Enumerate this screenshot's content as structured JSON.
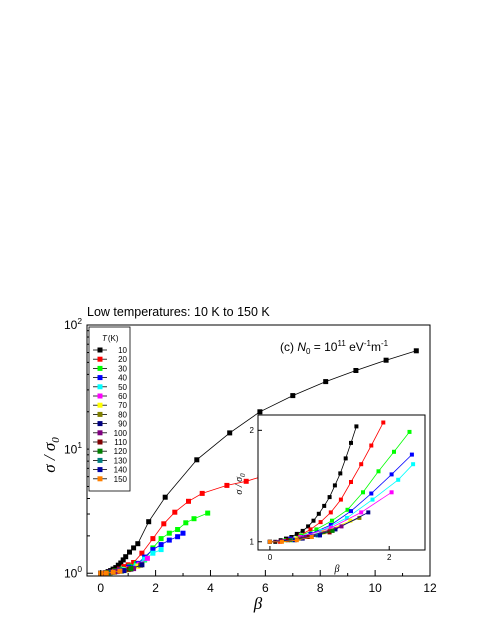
{
  "heading": "Low temperatures: 10 K to 150 K",
  "chart_data": [
    {
      "type": "line",
      "xlabel": "β",
      "ylabel": "σ / σ0",
      "xlim": [
        -0.5,
        12
      ],
      "ylim": [
        0.95,
        100
      ],
      "yscale": "log",
      "x_ticks": [
        0,
        2,
        4,
        6,
        8,
        10,
        12
      ],
      "y_ticks": [
        1,
        10,
        100
      ],
      "y_tick_labels": [
        {
          "base": "10",
          "exp": "0"
        },
        {
          "base": "10",
          "exp": "1"
        },
        {
          "base": "10",
          "exp": "2"
        }
      ],
      "annotation": {
        "prefix": "(c) ",
        "sym": "N",
        "sub": "0",
        "mid": " = 10",
        "exp": "11",
        "unit1": " eV",
        "unit1_exp": "-1",
        "unit2": "m",
        "unit2_exp": "-1"
      },
      "legend": {
        "title_sym": "T",
        "title_unit": "(K)",
        "position": "top-left"
      },
      "series": [
        {
          "name": "10",
          "color": "#000000",
          "points": [
            [
              0,
              1.0
            ],
            [
              0.09,
              1.0
            ],
            [
              0.18,
              1.01
            ],
            [
              0.27,
              1.03
            ],
            [
              0.36,
              1.05
            ],
            [
              0.45,
              1.08
            ],
            [
              0.55,
              1.11
            ],
            [
              0.64,
              1.16
            ],
            [
              0.73,
              1.21
            ],
            [
              0.82,
              1.28
            ],
            [
              0.91,
              1.36
            ],
            [
              1.05,
              1.48
            ],
            [
              1.2,
              1.6
            ],
            [
              1.35,
              1.73
            ],
            [
              1.75,
              2.6
            ],
            [
              2.35,
              4.1
            ],
            [
              3.5,
              8.2
            ],
            [
              4.7,
              13.5
            ],
            [
              5.8,
              20
            ],
            [
              7.0,
              27
            ],
            [
              8.2,
              35
            ],
            [
              9.3,
              43
            ],
            [
              10.4,
              52
            ],
            [
              11.5,
              62
            ]
          ]
        },
        {
          "name": "20",
          "color": "#ff0000",
          "points": [
            [
              0,
              1.0
            ],
            [
              0.17,
              1.0
            ],
            [
              0.34,
              1.02
            ],
            [
              0.51,
              1.04
            ],
            [
              0.68,
              1.08
            ],
            [
              0.85,
              1.13
            ],
            [
              1.0,
              1.17
            ],
            [
              1.2,
              1.22
            ],
            [
              1.5,
              1.45
            ],
            [
              1.9,
              1.9
            ],
            [
              2.3,
              2.5
            ],
            [
              2.7,
              3.1
            ],
            [
              3.2,
              3.8
            ],
            [
              3.7,
              4.4
            ],
            [
              4.6,
              5.1
            ],
            [
              5.3,
              5.5
            ],
            [
              5.8,
              5.95
            ]
          ]
        },
        {
          "name": "30",
          "color": "#00ff00",
          "points": [
            [
              0,
              1.0
            ],
            [
              0.26,
              1.01
            ],
            [
              0.52,
              1.04
            ],
            [
              0.78,
              1.08
            ],
            [
              1.05,
              1.14
            ],
            [
              1.3,
              1.2
            ],
            [
              1.6,
              1.28
            ],
            [
              1.9,
              1.6
            ],
            [
              2.2,
              1.9
            ],
            [
              2.5,
              2.1
            ],
            [
              2.8,
              2.25
            ],
            [
              3.1,
              2.55
            ],
            [
              3.4,
              2.75
            ],
            [
              3.9,
              3.05
            ]
          ]
        },
        {
          "name": "40",
          "color": "#0000ff",
          "points": [
            [
              0,
              1.0
            ],
            [
              0.34,
              1.02
            ],
            [
              0.68,
              1.06
            ],
            [
              1.02,
              1.12
            ],
            [
              1.36,
              1.2
            ],
            [
              1.6,
              1.35
            ],
            [
              1.9,
              1.55
            ],
            [
              2.2,
              1.7
            ],
            [
              2.5,
              1.85
            ],
            [
              2.8,
              1.97
            ],
            [
              3.0,
              2.1
            ]
          ]
        },
        {
          "name": "50",
          "color": "#00ffff",
          "points": [
            [
              0,
              1.0
            ],
            [
              0.43,
              1.02
            ],
            [
              0.86,
              1.07
            ],
            [
              1.29,
              1.15
            ],
            [
              1.6,
              1.3
            ],
            [
              1.9,
              1.45
            ],
            [
              2.2,
              1.55
            ]
          ]
        },
        {
          "name": "60",
          "color": "#ff00ff",
          "points": [
            [
              0,
              1.0
            ],
            [
              0.51,
              1.03
            ],
            [
              1.02,
              1.09
            ],
            [
              1.4,
              1.18
            ],
            [
              1.7,
              1.32
            ]
          ]
        },
        {
          "name": "70",
          "color": "#ffff00",
          "points": [
            [
              0,
              1.0
            ],
            [
              0.45,
              1.02
            ],
            [
              0.9,
              1.06
            ],
            [
              1.35,
              1.14
            ]
          ]
        },
        {
          "name": "80",
          "color": "#808000",
          "points": [
            [
              0,
              1.0
            ],
            [
              0.5,
              1.02
            ],
            [
              1.0,
              1.07
            ],
            [
              1.45,
              1.16
            ]
          ]
        },
        {
          "name": "90",
          "color": "#000080",
          "points": [
            [
              0,
              1.0
            ],
            [
              0.55,
              1.03
            ],
            [
              1.1,
              1.08
            ],
            [
              1.5,
              1.17
            ]
          ]
        },
        {
          "name": "100",
          "color": "#800080",
          "points": [
            [
              0,
              1.0
            ],
            [
              0.6,
              1.03
            ],
            [
              1.2,
              1.09
            ]
          ]
        },
        {
          "name": "110",
          "color": "#800000",
          "points": [
            [
              0,
              1.0
            ],
            [
              0.3,
              1.01
            ],
            [
              0.7,
              1.04
            ],
            [
              1.05,
              1.08
            ]
          ]
        },
        {
          "name": "120",
          "color": "#008000",
          "points": [
            [
              0,
              1.0
            ],
            [
              0.35,
              1.01
            ],
            [
              0.75,
              1.04
            ],
            [
              1.1,
              1.09
            ]
          ]
        },
        {
          "name": "130",
          "color": "#008080",
          "points": [
            [
              0,
              1.0
            ],
            [
              0.4,
              1.02
            ],
            [
              0.8,
              1.05
            ]
          ]
        },
        {
          "name": "140",
          "color": "#0000a0",
          "points": [
            [
              0,
              1.0
            ],
            [
              0.42,
              1.02
            ],
            [
              0.85,
              1.05
            ]
          ]
        },
        {
          "name": "150",
          "color": "#ff8000",
          "points": [
            [
              0,
              1.0
            ],
            [
              0.2,
              1.0
            ],
            [
              0.45,
              1.02
            ],
            [
              0.7,
              1.04
            ]
          ]
        }
      ]
    },
    {
      "type": "line",
      "role": "inset",
      "xlabel": "β",
      "ylabel": "σ / σ0",
      "xlim": [
        -0.2,
        2.6
      ],
      "ylim": [
        0.95,
        2.2
      ],
      "yscale": "log",
      "x_ticks": [
        0,
        2
      ],
      "y_ticks": [
        1,
        2
      ],
      "series": [
        {
          "name": "10",
          "color": "#000000",
          "points": [
            [
              0,
              1.0
            ],
            [
              0.09,
              1.0
            ],
            [
              0.18,
              1.01
            ],
            [
              0.27,
              1.02
            ],
            [
              0.36,
              1.03
            ],
            [
              0.45,
              1.05
            ],
            [
              0.55,
              1.07
            ],
            [
              0.64,
              1.1
            ],
            [
              0.73,
              1.14
            ],
            [
              0.82,
              1.19
            ],
            [
              0.91,
              1.25
            ],
            [
              1.0,
              1.32
            ],
            [
              1.09,
              1.42
            ],
            [
              1.18,
              1.53
            ],
            [
              1.27,
              1.68
            ],
            [
              1.36,
              1.85
            ],
            [
              1.45,
              2.05
            ],
            [
              1.6,
              2.3
            ]
          ]
        },
        {
          "name": "20",
          "color": "#ff0000",
          "points": [
            [
              0,
              1.0
            ],
            [
              0.17,
              1.0
            ],
            [
              0.34,
              1.02
            ],
            [
              0.51,
              1.04
            ],
            [
              0.68,
              1.08
            ],
            [
              0.85,
              1.13
            ],
            [
              1.02,
              1.2
            ],
            [
              1.19,
              1.3
            ],
            [
              1.36,
              1.45
            ],
            [
              1.53,
              1.62
            ],
            [
              1.7,
              1.82
            ],
            [
              1.9,
              2.1
            ]
          ]
        },
        {
          "name": "30",
          "color": "#00ff00",
          "points": [
            [
              0,
              1.0
            ],
            [
              0.26,
              1.01
            ],
            [
              0.52,
              1.04
            ],
            [
              0.78,
              1.08
            ],
            [
              1.04,
              1.14
            ],
            [
              1.3,
              1.22
            ],
            [
              1.56,
              1.36
            ],
            [
              1.82,
              1.55
            ],
            [
              2.08,
              1.75
            ],
            [
              2.34,
              1.98
            ]
          ]
        },
        {
          "name": "40",
          "color": "#0000ff",
          "points": [
            [
              0,
              1.0
            ],
            [
              0.34,
              1.02
            ],
            [
              0.68,
              1.05
            ],
            [
              1.02,
              1.11
            ],
            [
              1.36,
              1.21
            ],
            [
              1.7,
              1.35
            ],
            [
              2.04,
              1.52
            ],
            [
              2.38,
              1.72
            ]
          ]
        },
        {
          "name": "50",
          "color": "#00ffff",
          "points": [
            [
              0,
              1.0
            ],
            [
              0.43,
              1.02
            ],
            [
              0.86,
              1.07
            ],
            [
              1.29,
              1.16
            ],
            [
              1.72,
              1.3
            ],
            [
              2.15,
              1.47
            ],
            [
              2.4,
              1.62
            ]
          ]
        },
        {
          "name": "60",
          "color": "#ff00ff",
          "points": [
            [
              0,
              1.0
            ],
            [
              0.51,
              1.03
            ],
            [
              1.02,
              1.09
            ],
            [
              1.53,
              1.2
            ],
            [
              2.04,
              1.36
            ]
          ]
        },
        {
          "name": "70",
          "color": "#ffff00",
          "points": [
            [
              0,
              1.0
            ],
            [
              0.45,
              1.02
            ],
            [
              0.9,
              1.06
            ],
            [
              1.35,
              1.14
            ]
          ]
        },
        {
          "name": "80",
          "color": "#808000",
          "points": [
            [
              0,
              1.0
            ],
            [
              0.5,
              1.02
            ],
            [
              1.0,
              1.07
            ],
            [
              1.5,
              1.16
            ]
          ]
        },
        {
          "name": "90",
          "color": "#000080",
          "points": [
            [
              0,
              1.0
            ],
            [
              0.55,
              1.02
            ],
            [
              1.1,
              1.08
            ],
            [
              1.65,
              1.2
            ]
          ]
        },
        {
          "name": "100",
          "color": "#800080",
          "points": [
            [
              0,
              1.0
            ],
            [
              0.6,
              1.03
            ],
            [
              1.2,
              1.1
            ]
          ]
        },
        {
          "name": "110",
          "color": "#800000",
          "points": [
            [
              0,
              1.0
            ],
            [
              0.3,
              1.01
            ],
            [
              0.65,
              1.03
            ],
            [
              1.0,
              1.06
            ]
          ]
        },
        {
          "name": "120",
          "color": "#008000",
          "points": [
            [
              0,
              1.0
            ],
            [
              0.35,
              1.01
            ],
            [
              0.7,
              1.03
            ],
            [
              1.05,
              1.07
            ]
          ]
        },
        {
          "name": "130",
          "color": "#008080",
          "points": [
            [
              0,
              1.0
            ],
            [
              0.4,
              1.01
            ],
            [
              0.8,
              1.04
            ]
          ]
        },
        {
          "name": "140",
          "color": "#0000a0",
          "points": [
            [
              0,
              1.0
            ],
            [
              0.42,
              1.01
            ],
            [
              0.84,
              1.04
            ]
          ]
        },
        {
          "name": "150",
          "color": "#ff8000",
          "points": [
            [
              0,
              1.0
            ],
            [
              0.2,
              1.0
            ],
            [
              0.45,
              1.01
            ],
            [
              0.7,
              1.03
            ]
          ]
        }
      ]
    }
  ]
}
